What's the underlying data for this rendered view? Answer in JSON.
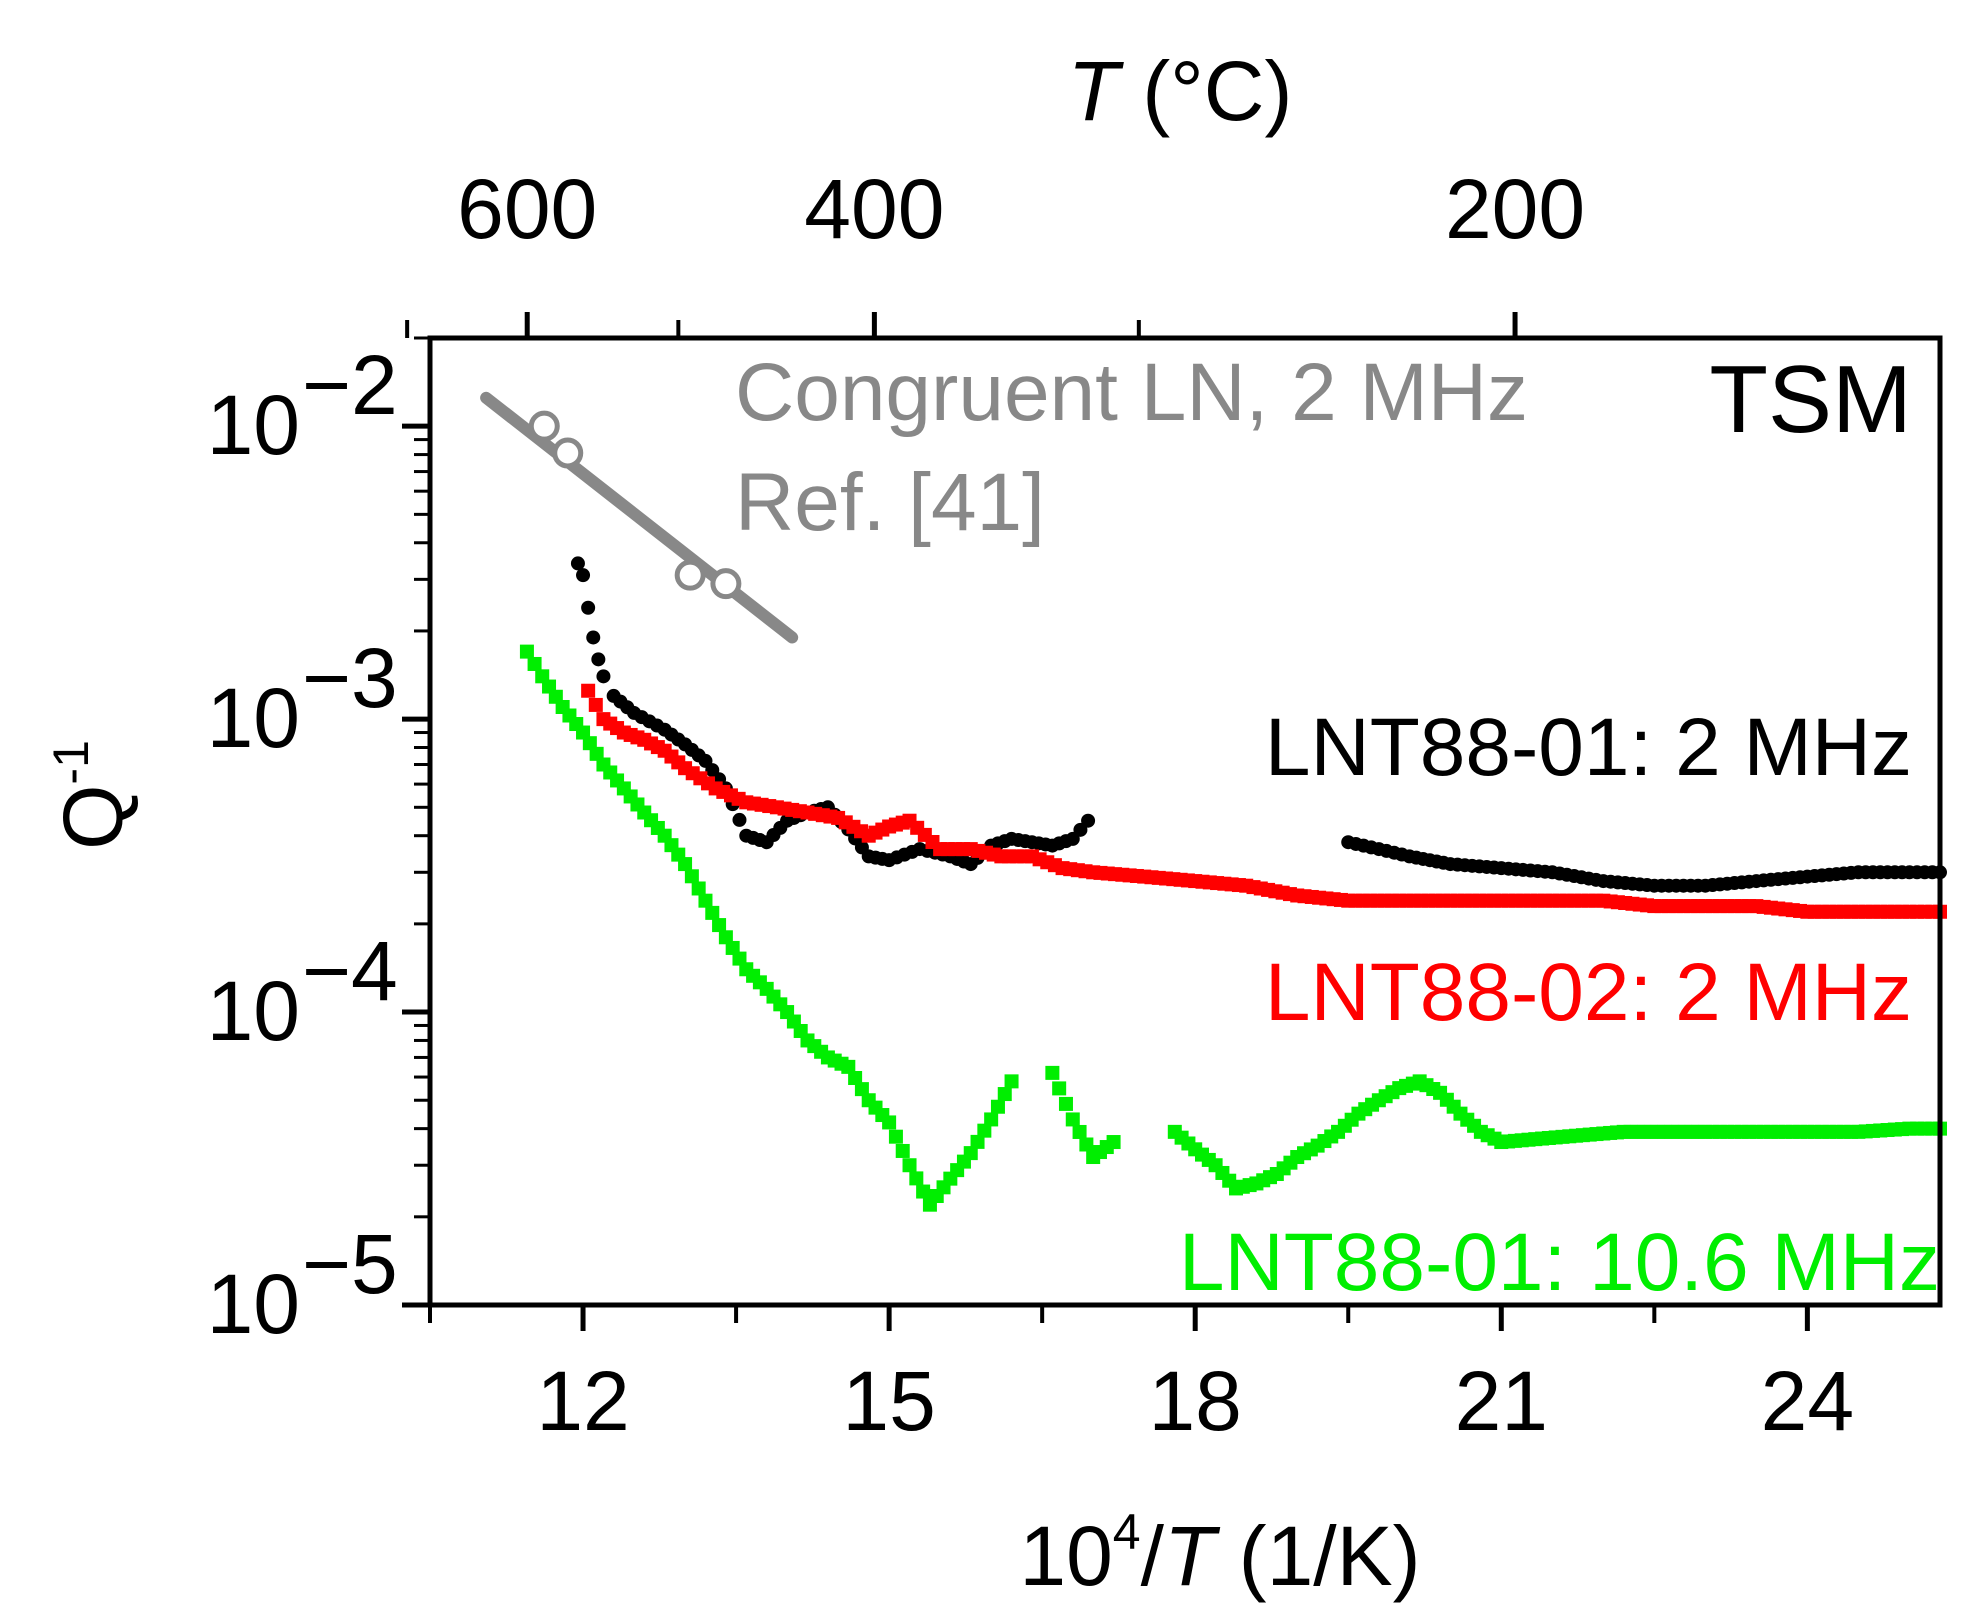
{
  "chart_data": {
    "type": "scatter",
    "title": "",
    "panel_label": "TSM",
    "xlabel": {
      "prefix": "10",
      "sup": "4",
      "slash": "/",
      "var": "T",
      "unit": " (1/K)"
    },
    "ylabel": {
      "base": "Q",
      "sup": "-1"
    },
    "top_xlabel": {
      "var": "T",
      "unit": " (°C)"
    },
    "xlim": [
      10.5,
      25.3
    ],
    "ylim": [
      1e-05,
      0.02
    ],
    "yscale": "log",
    "x_ticks": [
      12,
      15,
      18,
      21,
      24
    ],
    "x_tick_labels": [
      "12",
      "15",
      "18",
      "21",
      "24"
    ],
    "x_minor_ticks": [
      10.5,
      13.5,
      16.5,
      19.5,
      22.5
    ],
    "y_ticks": [
      1e-05,
      0.0001,
      0.001,
      0.01
    ],
    "y_tick_labels": [
      {
        "base": "10",
        "exp": "−5"
      },
      {
        "base": "10",
        "exp": "−4"
      },
      {
        "base": "10",
        "exp": "−3"
      },
      {
        "base": "10",
        "exp": "−2"
      }
    ],
    "top_ticks_celsius": [
      600,
      400,
      200
    ],
    "top_tick_labels": [
      "600",
      "400",
      "200"
    ],
    "top_minor_ticks_celsius": [
      700,
      500,
      300
    ],
    "series": [
      {
        "name": "LNT88-01: 2 MHz",
        "color": "#000000",
        "marker": "circle",
        "segments": [
          [
            [
              11.95,
              0.0034
            ],
            [
              12.0,
              0.0031
            ],
            [
              12.05,
              0.0024
            ],
            [
              12.1,
              0.0019
            ],
            [
              12.15,
              0.0016
            ],
            [
              12.2,
              0.0014
            ],
            [
              12.3,
              0.0012
            ],
            [
              12.5,
              0.00105
            ],
            [
              12.8,
              0.00092
            ],
            [
              13.0,
              0.00082
            ],
            [
              13.2,
              0.00072
            ],
            [
              13.4,
              0.00058
            ],
            [
              13.6,
              0.0004
            ],
            [
              13.8,
              0.00038
            ],
            [
              14.0,
              0.00045
            ],
            [
              14.2,
              0.00048
            ],
            [
              14.4,
              0.0005
            ],
            [
              14.6,
              0.00042
            ],
            [
              14.8,
              0.00034
            ],
            [
              15.0,
              0.00033
            ],
            [
              15.3,
              0.00036
            ],
            [
              15.6,
              0.00034
            ],
            [
              15.8,
              0.00032
            ],
            [
              16.0,
              0.00037
            ],
            [
              16.2,
              0.00039
            ],
            [
              16.4,
              0.00038
            ],
            [
              16.6,
              0.00037
            ],
            [
              16.8,
              0.00039
            ],
            [
              16.95,
              0.00045
            ]
          ],
          [
            [
              19.5,
              0.00038
            ],
            [
              19.8,
              0.00036
            ],
            [
              20.1,
              0.00034
            ],
            [
              20.5,
              0.00032
            ],
            [
              21.0,
              0.00031
            ],
            [
              21.5,
              0.0003
            ],
            [
              22.0,
              0.00028
            ],
            [
              22.5,
              0.00027
            ],
            [
              23.0,
              0.00027
            ],
            [
              23.5,
              0.00028
            ],
            [
              24.0,
              0.00029
            ],
            [
              24.5,
              0.0003
            ],
            [
              25.0,
              0.0003
            ],
            [
              25.3,
              0.0003
            ]
          ]
        ]
      },
      {
        "name": "LNT88-02: 2 MHz",
        "color": "#ff0000",
        "marker": "square",
        "segments": [
          [
            [
              12.05,
              0.00125
            ],
            [
              12.2,
              0.001
            ],
            [
              12.4,
              0.0009
            ],
            [
              12.6,
              0.00085
            ],
            [
              12.8,
              0.00078
            ],
            [
              13.0,
              0.00068
            ],
            [
              13.3,
              0.00058
            ],
            [
              13.6,
              0.00052
            ],
            [
              13.9,
              0.0005
            ],
            [
              14.2,
              0.00048
            ],
            [
              14.5,
              0.00046
            ],
            [
              14.8,
              0.0004
            ],
            [
              15.0,
              0.00043
            ],
            [
              15.2,
              0.00045
            ],
            [
              15.5,
              0.00036
            ],
            [
              15.8,
              0.00036
            ],
            [
              16.1,
              0.00034
            ],
            [
              16.4,
              0.00034
            ],
            [
              16.7,
              0.00031
            ],
            [
              17.0,
              0.0003
            ],
            [
              17.5,
              0.00029
            ],
            [
              18.0,
              0.00028
            ],
            [
              18.5,
              0.00027
            ],
            [
              19.0,
              0.00025
            ],
            [
              19.5,
              0.00024
            ],
            [
              20.0,
              0.00024
            ],
            [
              20.5,
              0.00024
            ],
            [
              21.0,
              0.00024
            ],
            [
              21.5,
              0.00024
            ],
            [
              22.0,
              0.00024
            ],
            [
              22.5,
              0.00023
            ],
            [
              23.0,
              0.00023
            ],
            [
              23.5,
              0.00023
            ],
            [
              24.0,
              0.00022
            ],
            [
              24.5,
              0.00022
            ],
            [
              25.0,
              0.00022
            ],
            [
              25.3,
              0.00022
            ]
          ]
        ]
      },
      {
        "name": "LNT88-01: 10.6 MHz",
        "color": "#00ee00",
        "marker": "square",
        "segments": [
          [
            [
              11.45,
              0.0017
            ],
            [
              11.6,
              0.0014
            ],
            [
              11.8,
              0.0011
            ],
            [
              12.0,
              0.0009
            ],
            [
              12.2,
              0.0007
            ],
            [
              12.4,
              0.00058
            ],
            [
              12.6,
              0.00048
            ],
            [
              12.8,
              0.0004
            ],
            [
              13.0,
              0.00032
            ],
            [
              13.2,
              0.00024
            ],
            [
              13.4,
              0.00018
            ],
            [
              13.6,
              0.00014
            ],
            [
              13.8,
              0.00012
            ],
            [
              14.0,
              0.0001
            ],
            [
              14.2,
              8e-05
            ],
            [
              14.4,
              7e-05
            ],
            [
              14.6,
              6.5e-05
            ],
            [
              14.8,
              5e-05
            ],
            [
              15.0,
              4.2e-05
            ],
            [
              15.2,
              3e-05
            ],
            [
              15.4,
              2.2e-05
            ],
            [
              15.6,
              2.7e-05
            ],
            [
              15.8,
              3.3e-05
            ],
            [
              16.0,
              4.3e-05
            ],
            [
              16.2,
              5.8e-05
            ]
          ],
          [
            [
              16.6,
              6.2e-05
            ],
            [
              16.8,
              4.3e-05
            ],
            [
              17.0,
              3.2e-05
            ],
            [
              17.2,
              3.6e-05
            ]
          ],
          [
            [
              17.8,
              3.9e-05
            ],
            [
              18.0,
              3.4e-05
            ],
            [
              18.2,
              3e-05
            ],
            [
              18.4,
              2.5e-05
            ],
            [
              18.6,
              2.6e-05
            ],
            [
              18.8,
              2.8e-05
            ],
            [
              19.0,
              3.2e-05
            ],
            [
              19.2,
              3.5e-05
            ],
            [
              19.4,
              3.9e-05
            ],
            [
              19.6,
              4.5e-05
            ],
            [
              19.8,
              5e-05
            ],
            [
              20.0,
              5.5e-05
            ],
            [
              20.2,
              5.8e-05
            ],
            [
              20.4,
              5.3e-05
            ],
            [
              20.6,
              4.5e-05
            ],
            [
              20.8,
              3.9e-05
            ],
            [
              21.0,
              3.6e-05
            ],
            [
              21.4,
              3.7e-05
            ],
            [
              21.8,
              3.8e-05
            ],
            [
              22.2,
              3.9e-05
            ],
            [
              22.6,
              3.9e-05
            ],
            [
              23.0,
              3.9e-05
            ],
            [
              23.5,
              3.9e-05
            ],
            [
              24.0,
              3.9e-05
            ],
            [
              24.5,
              3.9e-05
            ],
            [
              25.0,
              4e-05
            ],
            [
              25.3,
              4e-05
            ]
          ]
        ]
      },
      {
        "name": "Congruent LN, 2 MHz",
        "color": "#888888",
        "marker": "open-circle",
        "points": [
          [
            11.62,
            0.01
          ],
          [
            11.85,
            0.0081
          ],
          [
            13.05,
            0.0031
          ],
          [
            13.4,
            0.0029
          ]
        ],
        "fit_line": [
          [
            11.05,
            0.0125
          ],
          [
            14.05,
            0.0019
          ]
        ]
      }
    ],
    "annotations": [
      {
        "key": "ref_line1",
        "text": "Congruent LN, 2 MHz",
        "color": "#888888"
      },
      {
        "key": "ref_line2",
        "text": "Ref. [41]",
        "color": "#888888"
      },
      {
        "key": "lnt0102",
        "text": "LNT88-01: 2 MHz",
        "color": "#000000"
      },
      {
        "key": "lnt0202",
        "text": "LNT88-02: 2 MHz",
        "color": "#ff0000"
      },
      {
        "key": "lnt01106",
        "text": "LNT88-01: 10.6 MHz",
        "color": "#00ee00"
      }
    ],
    "grid": false
  }
}
